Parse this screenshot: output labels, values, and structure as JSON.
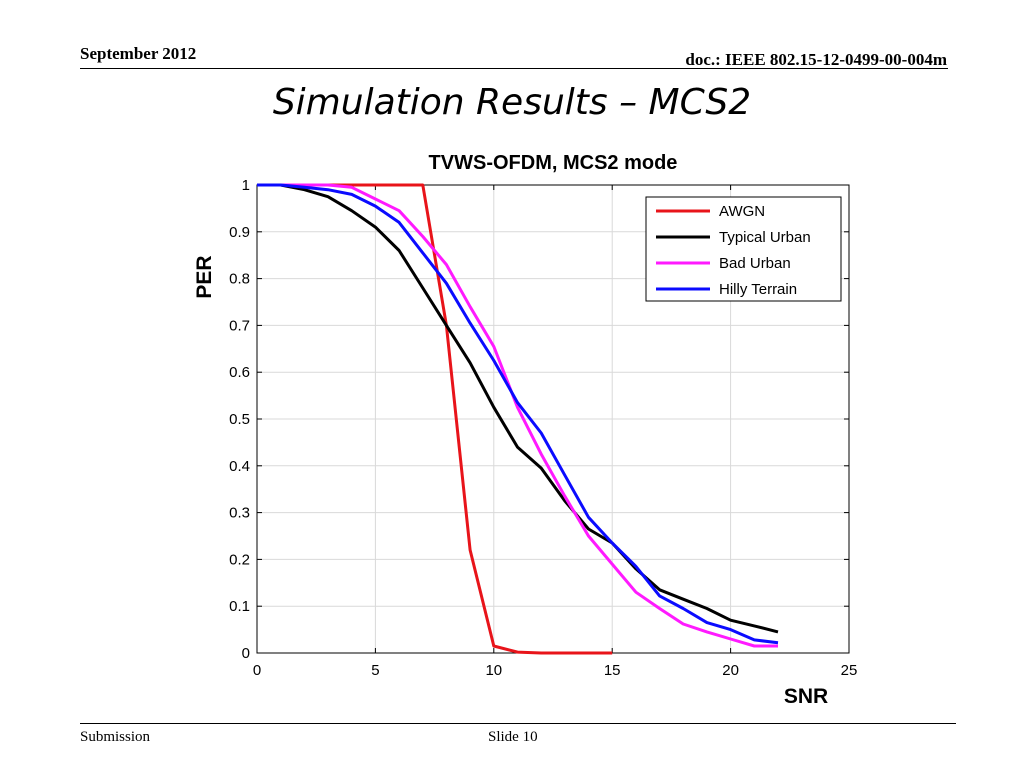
{
  "header": {
    "date": "September 2012",
    "doc_id": "doc.: IEEE 802.15-12-0499-00-004m"
  },
  "slide_title": "Simulation Results – MCS2",
  "footer": {
    "left": "Submission",
    "center": "Slide 10"
  },
  "chart_data": {
    "type": "line",
    "title": "TVWS-OFDM, MCS2 mode",
    "xlabel": "SNR",
    "ylabel": "PER",
    "xlim": [
      0,
      25
    ],
    "ylim": [
      0,
      1
    ],
    "xticks": [
      "0",
      "5",
      "10",
      "15",
      "20",
      "25"
    ],
    "yticks": [
      "0",
      "0.1",
      "0.2",
      "0.3",
      "0.4",
      "0.5",
      "0.6",
      "0.7",
      "0.8",
      "0.9",
      "1"
    ],
    "grid": true,
    "legend_position": "top-right",
    "series": [
      {
        "name": "AWGN",
        "color": "#e8141a",
        "x": [
          0,
          1,
          2,
          3,
          4,
          5,
          6,
          7,
          8,
          9,
          10,
          11,
          12,
          13,
          14,
          15
        ],
        "y": [
          1,
          1,
          1,
          1,
          1,
          1,
          1,
          1,
          0.7,
          0.22,
          0.015,
          0.002,
          0,
          0,
          0,
          0
        ]
      },
      {
        "name": "Typical Urban",
        "color": "#000000",
        "x": [
          0,
          1,
          2,
          3,
          4,
          5,
          6,
          7,
          8,
          9,
          10,
          11,
          12,
          13,
          14,
          15,
          16,
          17,
          18,
          19,
          20,
          21,
          22
        ],
        "y": [
          1,
          1,
          0.99,
          0.975,
          0.945,
          0.91,
          0.86,
          0.78,
          0.7,
          0.62,
          0.525,
          0.44,
          0.395,
          0.325,
          0.265,
          0.235,
          0.18,
          0.135,
          0.115,
          0.095,
          0.07,
          0.058,
          0.045
        ]
      },
      {
        "name": "Bad Urban",
        "color": "#ff1aff",
        "x": [
          0,
          1,
          2,
          3,
          4,
          5,
          6,
          7,
          8,
          9,
          10,
          11,
          12,
          13,
          14,
          15,
          16,
          17,
          18,
          19,
          20,
          21,
          22
        ],
        "y": [
          1,
          1,
          1,
          1,
          0.995,
          0.97,
          0.945,
          0.89,
          0.83,
          0.74,
          0.655,
          0.525,
          0.425,
          0.335,
          0.25,
          0.19,
          0.13,
          0.095,
          0.062,
          0.045,
          0.03,
          0.015,
          0.015
        ]
      },
      {
        "name": "Hilly Terrain",
        "color": "#0b0bff",
        "x": [
          0,
          1,
          2,
          3,
          4,
          5,
          6,
          7,
          8,
          9,
          10,
          11,
          12,
          13,
          14,
          15,
          16,
          17,
          18,
          19,
          20,
          21,
          22
        ],
        "y": [
          1,
          1,
          0.995,
          0.99,
          0.98,
          0.955,
          0.92,
          0.855,
          0.79,
          0.705,
          0.625,
          0.535,
          0.47,
          0.38,
          0.29,
          0.235,
          0.185,
          0.122,
          0.095,
          0.065,
          0.05,
          0.028,
          0.022
        ]
      }
    ]
  }
}
